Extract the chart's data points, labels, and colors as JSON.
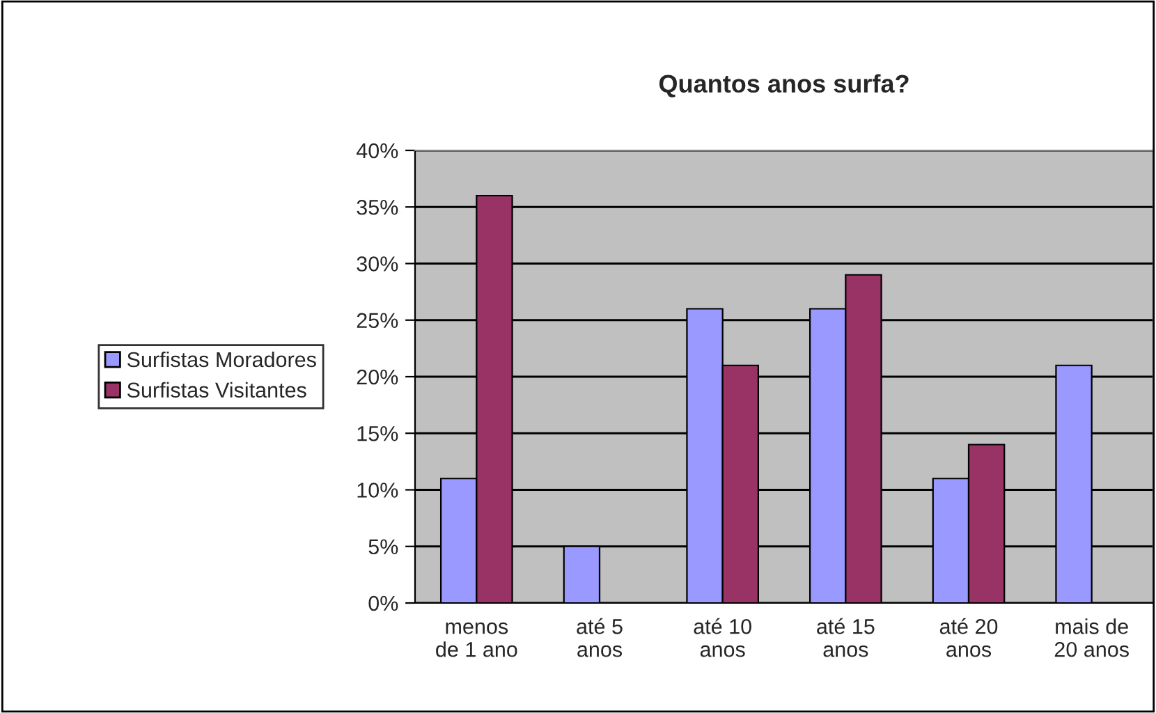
{
  "chart_data": {
    "type": "bar",
    "title": "Quantos anos surfa?",
    "categories": [
      "menos\nde 1 ano",
      "até 5\nanos",
      "até 10\nanos",
      "até 15\nanos",
      "até 20\nanos",
      "mais de\n20 anos"
    ],
    "series": [
      {
        "name": "Surfistas Moradores",
        "color": "#9999ff",
        "values": [
          11,
          5,
          26,
          26,
          11,
          21
        ]
      },
      {
        "name": "Surfistas Visitantes",
        "color": "#993366",
        "values": [
          36,
          null,
          21,
          29,
          14,
          null
        ]
      }
    ],
    "ylim": [
      0,
      40
    ],
    "yticks": [
      {
        "value": 0,
        "label": "0%"
      },
      {
        "value": 5,
        "label": "5%"
      },
      {
        "value": 10,
        "label": "10%"
      },
      {
        "value": 15,
        "label": "15%"
      },
      {
        "value": 20,
        "label": "20%"
      },
      {
        "value": 25,
        "label": "25%"
      },
      {
        "value": 30,
        "label": "30%"
      },
      {
        "value": 35,
        "label": "35%"
      },
      {
        "value": 40,
        "label": "40%"
      }
    ],
    "grid": "y",
    "legend": "left"
  }
}
